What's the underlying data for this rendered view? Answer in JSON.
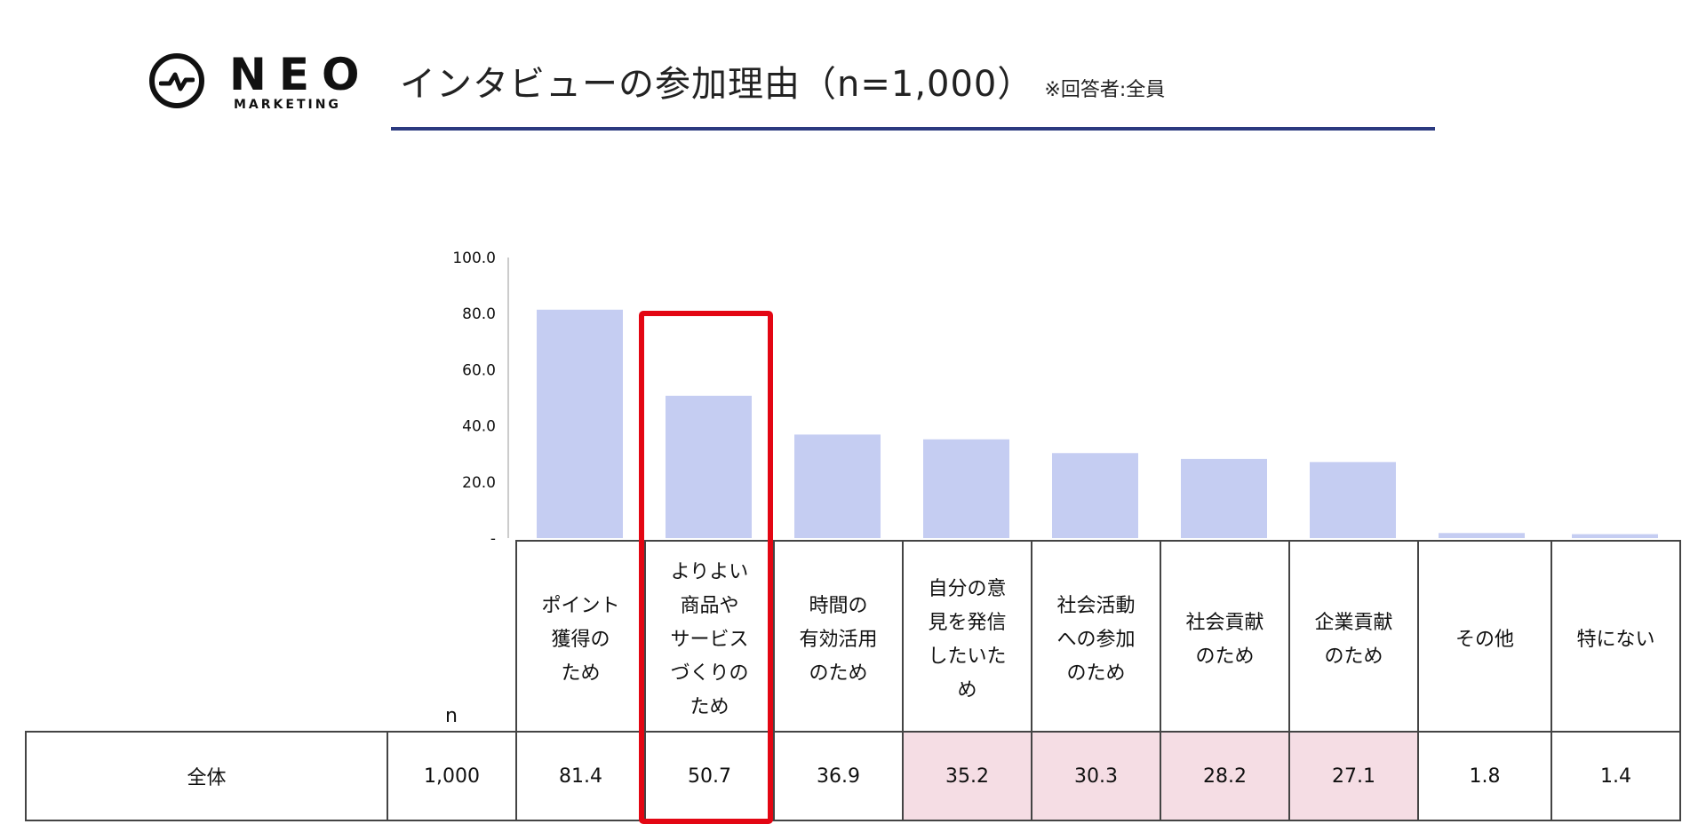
{
  "logo": {
    "word": "NEO",
    "sub": "MARKETING"
  },
  "title": {
    "main": "インタビューの参加理由（n=1,000）",
    "note": "※回答者:全員"
  },
  "colors": {
    "bar": "#c5cdf2",
    "accent": "#2b3a80",
    "highlight": "#f5dde4",
    "redbox": "#e30613"
  },
  "chart_data": {
    "type": "bar",
    "title": "インタビューの参加理由（n=1,000）",
    "categories": [
      "ポイント獲得のため",
      "よりよい商品やサービスづくりのため",
      "時間の有効活用のため",
      "自分の意見を発信したいため",
      "社会活動への参加のため",
      "社会貢献のため",
      "企業貢献のため",
      "その他",
      "特にない"
    ],
    "values": [
      81.4,
      50.7,
      36.9,
      35.2,
      30.3,
      28.2,
      27.1,
      1.8,
      1.4
    ],
    "ylim": [
      0,
      100
    ],
    "yticks": [
      "-",
      "20.0",
      "40.0",
      "60.0",
      "80.0",
      "100.0"
    ],
    "ytick_values": [
      0,
      20,
      40,
      60,
      80,
      100
    ],
    "xlabel": "",
    "ylabel": ""
  },
  "table": {
    "header": {
      "n_label": "n",
      "categories_display": [
        [
          "ポイント",
          "獲得の",
          "ため"
        ],
        [
          "よりよい",
          "商品や",
          "サービス",
          "づくりの",
          "ため"
        ],
        [
          "時間の",
          "有効活用",
          "のため"
        ],
        [
          "自分の意",
          "見を発信",
          "したいた",
          "め"
        ],
        [
          "社会活動",
          "への参加",
          "のため"
        ],
        [
          "社会貢献",
          "のため"
        ],
        [
          "企業貢献",
          "のため"
        ],
        [
          "その他"
        ],
        [
          "特にない"
        ]
      ]
    },
    "row": {
      "label": "全体",
      "n": "1,000",
      "values": [
        "81.4",
        "50.7",
        "36.9",
        "35.2",
        "30.3",
        "28.2",
        "27.1",
        "1.8",
        "1.4"
      ]
    }
  }
}
